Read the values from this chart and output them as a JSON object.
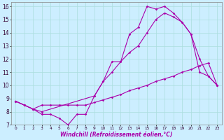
{
  "xlabel": "Windchill (Refroidissement éolien,°C)",
  "xlim": [
    -0.5,
    23.5
  ],
  "ylim": [
    7,
    16.3
  ],
  "xticks": [
    0,
    1,
    2,
    3,
    4,
    5,
    6,
    7,
    8,
    9,
    10,
    11,
    12,
    13,
    14,
    15,
    16,
    17,
    18,
    19,
    20,
    21,
    22,
    23
  ],
  "yticks": [
    7,
    8,
    9,
    10,
    11,
    12,
    13,
    14,
    15,
    16
  ],
  "bg_color": "#cceeff",
  "grid_color": "#aadddd",
  "line_color": "#aa00aa",
  "line1_x": [
    0,
    1,
    2,
    3,
    4,
    5,
    6,
    7,
    8,
    9,
    10,
    11,
    12,
    13,
    14,
    15,
    16,
    17,
    18,
    19,
    20,
    21,
    22,
    23
  ],
  "line1_y": [
    8.8,
    8.5,
    8.2,
    8.5,
    8.5,
    8.5,
    8.5,
    8.5,
    8.5,
    8.7,
    8.9,
    9.1,
    9.3,
    9.6,
    9.8,
    10.0,
    10.3,
    10.5,
    10.7,
    11.0,
    11.2,
    11.5,
    11.7,
    10.0
  ],
  "line2_x": [
    0,
    1,
    2,
    3,
    4,
    5,
    6,
    7,
    8,
    9,
    10,
    11,
    12,
    13,
    14,
    15,
    16,
    17,
    18,
    19,
    20,
    21,
    22,
    23
  ],
  "line2_y": [
    8.8,
    8.5,
    8.2,
    7.8,
    7.8,
    7.5,
    7.0,
    7.8,
    7.8,
    9.2,
    10.3,
    11.8,
    11.8,
    13.9,
    14.4,
    16.0,
    15.8,
    16.0,
    15.5,
    14.8,
    13.9,
    11.0,
    10.7,
    10.0
  ],
  "line3_x": [
    0,
    1,
    2,
    3,
    9,
    10,
    11,
    12,
    13,
    14,
    15,
    16,
    17,
    18,
    19,
    20,
    21,
    22,
    23
  ],
  "line3_y": [
    8.8,
    8.5,
    8.2,
    8.0,
    9.2,
    10.3,
    11.0,
    11.8,
    12.5,
    13.0,
    14.0,
    15.0,
    15.5,
    15.2,
    14.8,
    13.9,
    12.0,
    10.7,
    10.0
  ]
}
